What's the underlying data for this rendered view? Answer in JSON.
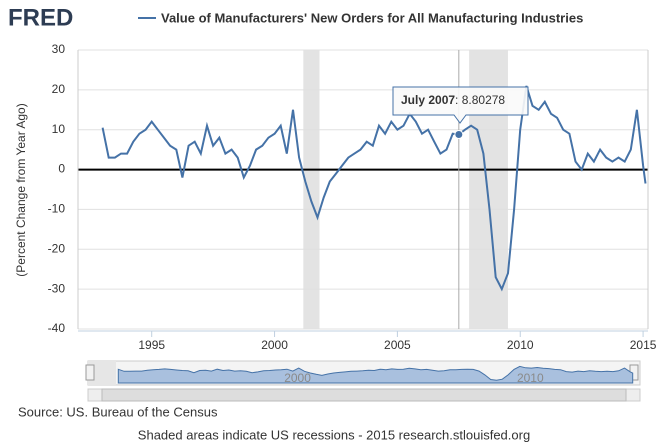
{
  "logo": "FRED",
  "chart_data": {
    "type": "line",
    "series": [
      {
        "name": "Value of Manufacturers' New Orders for All Manufacturing Industries",
        "color": "#4572a7",
        "values": [
          10.5,
          3,
          3,
          4,
          4,
          7,
          9,
          10,
          12,
          10,
          8,
          6,
          5,
          -2,
          6,
          7,
          4,
          11,
          6,
          8,
          4,
          5,
          3,
          -2,
          1,
          5,
          6,
          8,
          9,
          11,
          4,
          15,
          3,
          -3,
          -8,
          -12,
          -7,
          -3,
          -1,
          1,
          3,
          4,
          5,
          7,
          6,
          11,
          9,
          12,
          10,
          11,
          14,
          12,
          9,
          10,
          7,
          4,
          5,
          9,
          8.80278,
          10,
          11,
          10,
          4,
          -10,
          -27,
          -30,
          -26,
          -10,
          10,
          21,
          16,
          15,
          17,
          14,
          13,
          10,
          9,
          2,
          0,
          4,
          2,
          5,
          3,
          2,
          3,
          2,
          5,
          15,
          1,
          -3.5
        ]
      }
    ],
    "x": [
      1993,
      1993.25,
      1993.5,
      1993.75,
      1994,
      1994.25,
      1994.5,
      1994.75,
      1995,
      1995.25,
      1995.5,
      1995.75,
      1996,
      1996.25,
      1996.5,
      1996.75,
      1997,
      1997.25,
      1997.5,
      1997.75,
      1998,
      1998.25,
      1998.5,
      1998.75,
      1999,
      1999.25,
      1999.5,
      1999.75,
      2000,
      2000.25,
      2000.5,
      2000.75,
      2001,
      2001.25,
      2001.5,
      2001.75,
      2002,
      2002.25,
      2002.5,
      2002.75,
      2003,
      2003.25,
      2003.5,
      2003.75,
      2004,
      2004.25,
      2004.5,
      2004.75,
      2005,
      2005.25,
      2005.5,
      2005.75,
      2006,
      2006.25,
      2006.5,
      2006.75,
      2007,
      2007.25,
      2007.5,
      2007.75,
      2008,
      2008.25,
      2008.5,
      2008.75,
      2009,
      2009.25,
      2009.5,
      2009.75,
      2010,
      2010.25,
      2010.5,
      2010.75,
      2011,
      2011.25,
      2011.5,
      2011.75,
      2012,
      2012.25,
      2012.5,
      2012.75,
      2013,
      2013.25,
      2013.5,
      2013.75,
      2014,
      2014.25,
      2014.5,
      2014.75,
      2015,
      2015.1
    ],
    "xlim": [
      1992,
      2015.2
    ],
    "xticks": [
      1995,
      2000,
      2005,
      2010,
      2015
    ],
    "ylim": [
      -40,
      30
    ],
    "yticks": [
      -40,
      -30,
      -20,
      -10,
      0,
      10,
      20,
      30
    ],
    "ylabel": "(Percent Change from Year Ago)",
    "grid": true,
    "recessions": [
      [
        2001.17,
        2001.83
      ],
      [
        2007.92,
        2009.5
      ]
    ],
    "tooltip": {
      "label": "July 2007",
      "x": 2007.5,
      "value": 8.80278
    },
    "navigator_ticks": [
      2000,
      2010
    ],
    "source": "Source: US. Bureau of the Census",
    "note": "Shaded areas indicate US recessions - 2015 research.stlouisfed.org"
  }
}
